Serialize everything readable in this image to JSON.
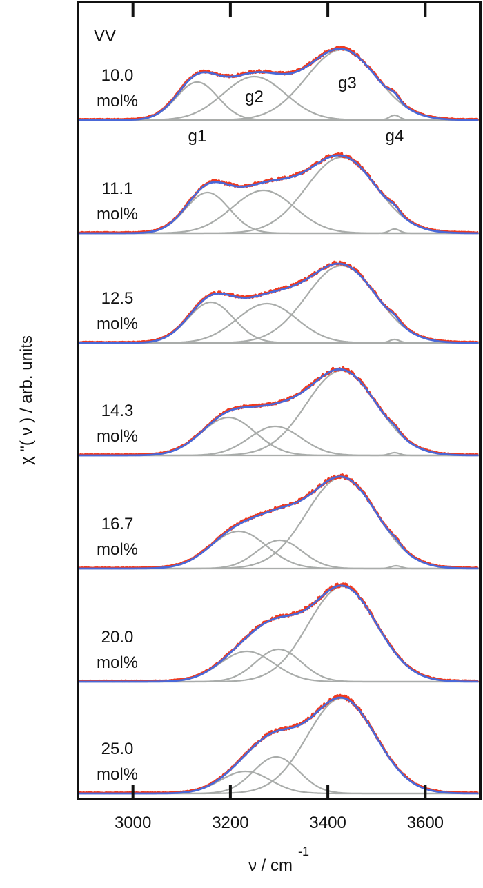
{
  "chart_data": {
    "type": "line",
    "title": "",
    "polarization_label": "VV",
    "xlabel": "ν  / cm",
    "xlabel_superscript": "-1",
    "ylabel": "χ \"( ν )  / arb. units",
    "xlim": [
      2890,
      3710
    ],
    "xticks": [
      3000,
      3200,
      3400,
      3600
    ],
    "xtick_labels": [
      "3000",
      "3200",
      "3400",
      "3600"
    ],
    "grid": false,
    "colors": {
      "data": "#f03a1e",
      "fit": "#4a68d8",
      "components": "#a9acaa",
      "frame": "#111111"
    },
    "component_labels": [
      {
        "text": "g1",
        "x": 3132,
        "y": -0.23
      },
      {
        "text": "g2",
        "x": 3249,
        "y": 0.34
      },
      {
        "text": "g3",
        "x": 3440,
        "y": 0.54
      },
      {
        "text": "g4",
        "x": 3537,
        "y": -0.23
      }
    ],
    "panels": [
      {
        "conc": "10.0",
        "unit": "mol%",
        "components": [
          {
            "name": "g1",
            "center": 3132,
            "amp": 0.55,
            "fwhm": 100
          },
          {
            "name": "g2",
            "center": 3249,
            "amp": 0.63,
            "fwhm": 150
          },
          {
            "name": "g3",
            "center": 3428,
            "amp": 1.02,
            "fwhm": 170
          },
          {
            "name": "g4",
            "center": 3537,
            "amp": 0.07,
            "fwhm": 25
          }
        ]
      },
      {
        "conc": "11.1",
        "unit": "mol%",
        "components": [
          {
            "name": "g1",
            "center": 3153,
            "amp": 0.59,
            "fwhm": 105
          },
          {
            "name": "g2",
            "center": 3268,
            "amp": 0.62,
            "fwhm": 150
          },
          {
            "name": "g3",
            "center": 3428,
            "amp": 1.1,
            "fwhm": 170
          },
          {
            "name": "g4",
            "center": 3537,
            "amp": 0.06,
            "fwhm": 25
          }
        ]
      },
      {
        "conc": "12.5",
        "unit": "mol%",
        "components": [
          {
            "name": "g1",
            "center": 3160,
            "amp": 0.59,
            "fwhm": 110
          },
          {
            "name": "g2",
            "center": 3275,
            "amp": 0.57,
            "fwhm": 145
          },
          {
            "name": "g3",
            "center": 3428,
            "amp": 1.12,
            "fwhm": 170
          },
          {
            "name": "g4",
            "center": 3537,
            "amp": 0.05,
            "fwhm": 25
          }
        ]
      },
      {
        "conc": "14.3",
        "unit": "mol%",
        "components": [
          {
            "name": "g1",
            "center": 3196,
            "amp": 0.55,
            "fwhm": 130
          },
          {
            "name": "g2",
            "center": 3292,
            "amp": 0.42,
            "fwhm": 125
          },
          {
            "name": "g3",
            "center": 3428,
            "amp": 1.23,
            "fwhm": 170
          },
          {
            "name": "g4",
            "center": 3537,
            "amp": 0.04,
            "fwhm": 25
          }
        ]
      },
      {
        "conc": "16.7",
        "unit": "mol%",
        "components": [
          {
            "name": "g1",
            "center": 3217,
            "amp": 0.54,
            "fwhm": 135
          },
          {
            "name": "g2",
            "center": 3301,
            "amp": 0.41,
            "fwhm": 110
          },
          {
            "name": "g3",
            "center": 3428,
            "amp": 1.32,
            "fwhm": 170
          },
          {
            "name": "g4",
            "center": 3540,
            "amp": 0.04,
            "fwhm": 25
          }
        ]
      },
      {
        "conc": "20.0",
        "unit": "mol%",
        "components": [
          {
            "name": "g1",
            "center": 3234,
            "amp": 0.44,
            "fwhm": 130
          },
          {
            "name": "g2",
            "center": 3299,
            "amp": 0.47,
            "fwhm": 110
          },
          {
            "name": "g3",
            "center": 3430,
            "amp": 1.38,
            "fwhm": 165
          }
        ]
      },
      {
        "conc": "25.0",
        "unit": "mol%",
        "components": [
          {
            "name": "g1",
            "center": 3231,
            "amp": 0.32,
            "fwhm": 120
          },
          {
            "name": "g2",
            "center": 3294,
            "amp": 0.53,
            "fwhm": 110
          },
          {
            "name": "g3",
            "center": 3428,
            "amp": 1.38,
            "fwhm": 165
          }
        ]
      }
    ]
  }
}
